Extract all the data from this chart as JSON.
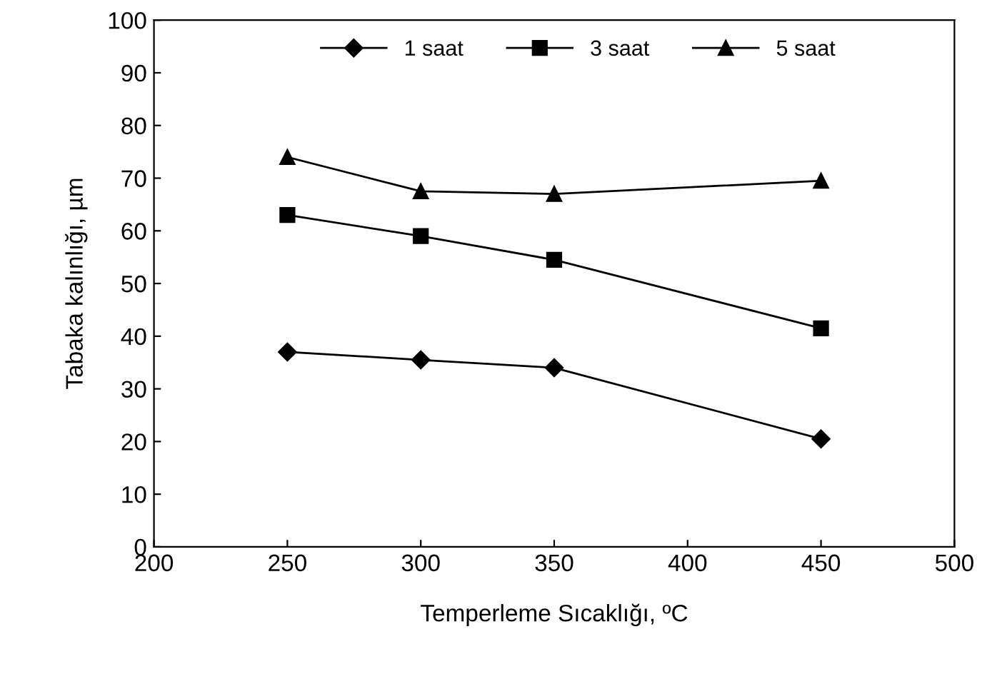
{
  "chart_data": {
    "type": "line",
    "xlabel": "Temperleme Sıcaklığı, ºC",
    "ylabel": "Tabaka kalınlığı, µm",
    "x": [
      250,
      300,
      350,
      450
    ],
    "series": [
      {
        "name": "1 saat",
        "color": "#000000",
        "values": [
          37,
          35.5,
          34,
          20.5
        ],
        "marker": "diamond"
      },
      {
        "name": "3 saat",
        "color": "#000000",
        "values": [
          63,
          59,
          54.5,
          41.5
        ],
        "marker": "square"
      },
      {
        "name": "5 saat",
        "color": "#000000",
        "values": [
          74,
          67.5,
          67,
          69.5
        ],
        "marker": "triangle"
      }
    ],
    "xlim": [
      200,
      500
    ],
    "xticks": [
      200,
      250,
      300,
      350,
      400,
      450,
      500
    ],
    "ylim": [
      0,
      100
    ],
    "yticks": [
      0,
      10,
      20,
      30,
      40,
      50,
      60,
      70,
      80,
      90,
      100
    ],
    "grid": false,
    "legend": "top",
    "line_style": "solid"
  }
}
